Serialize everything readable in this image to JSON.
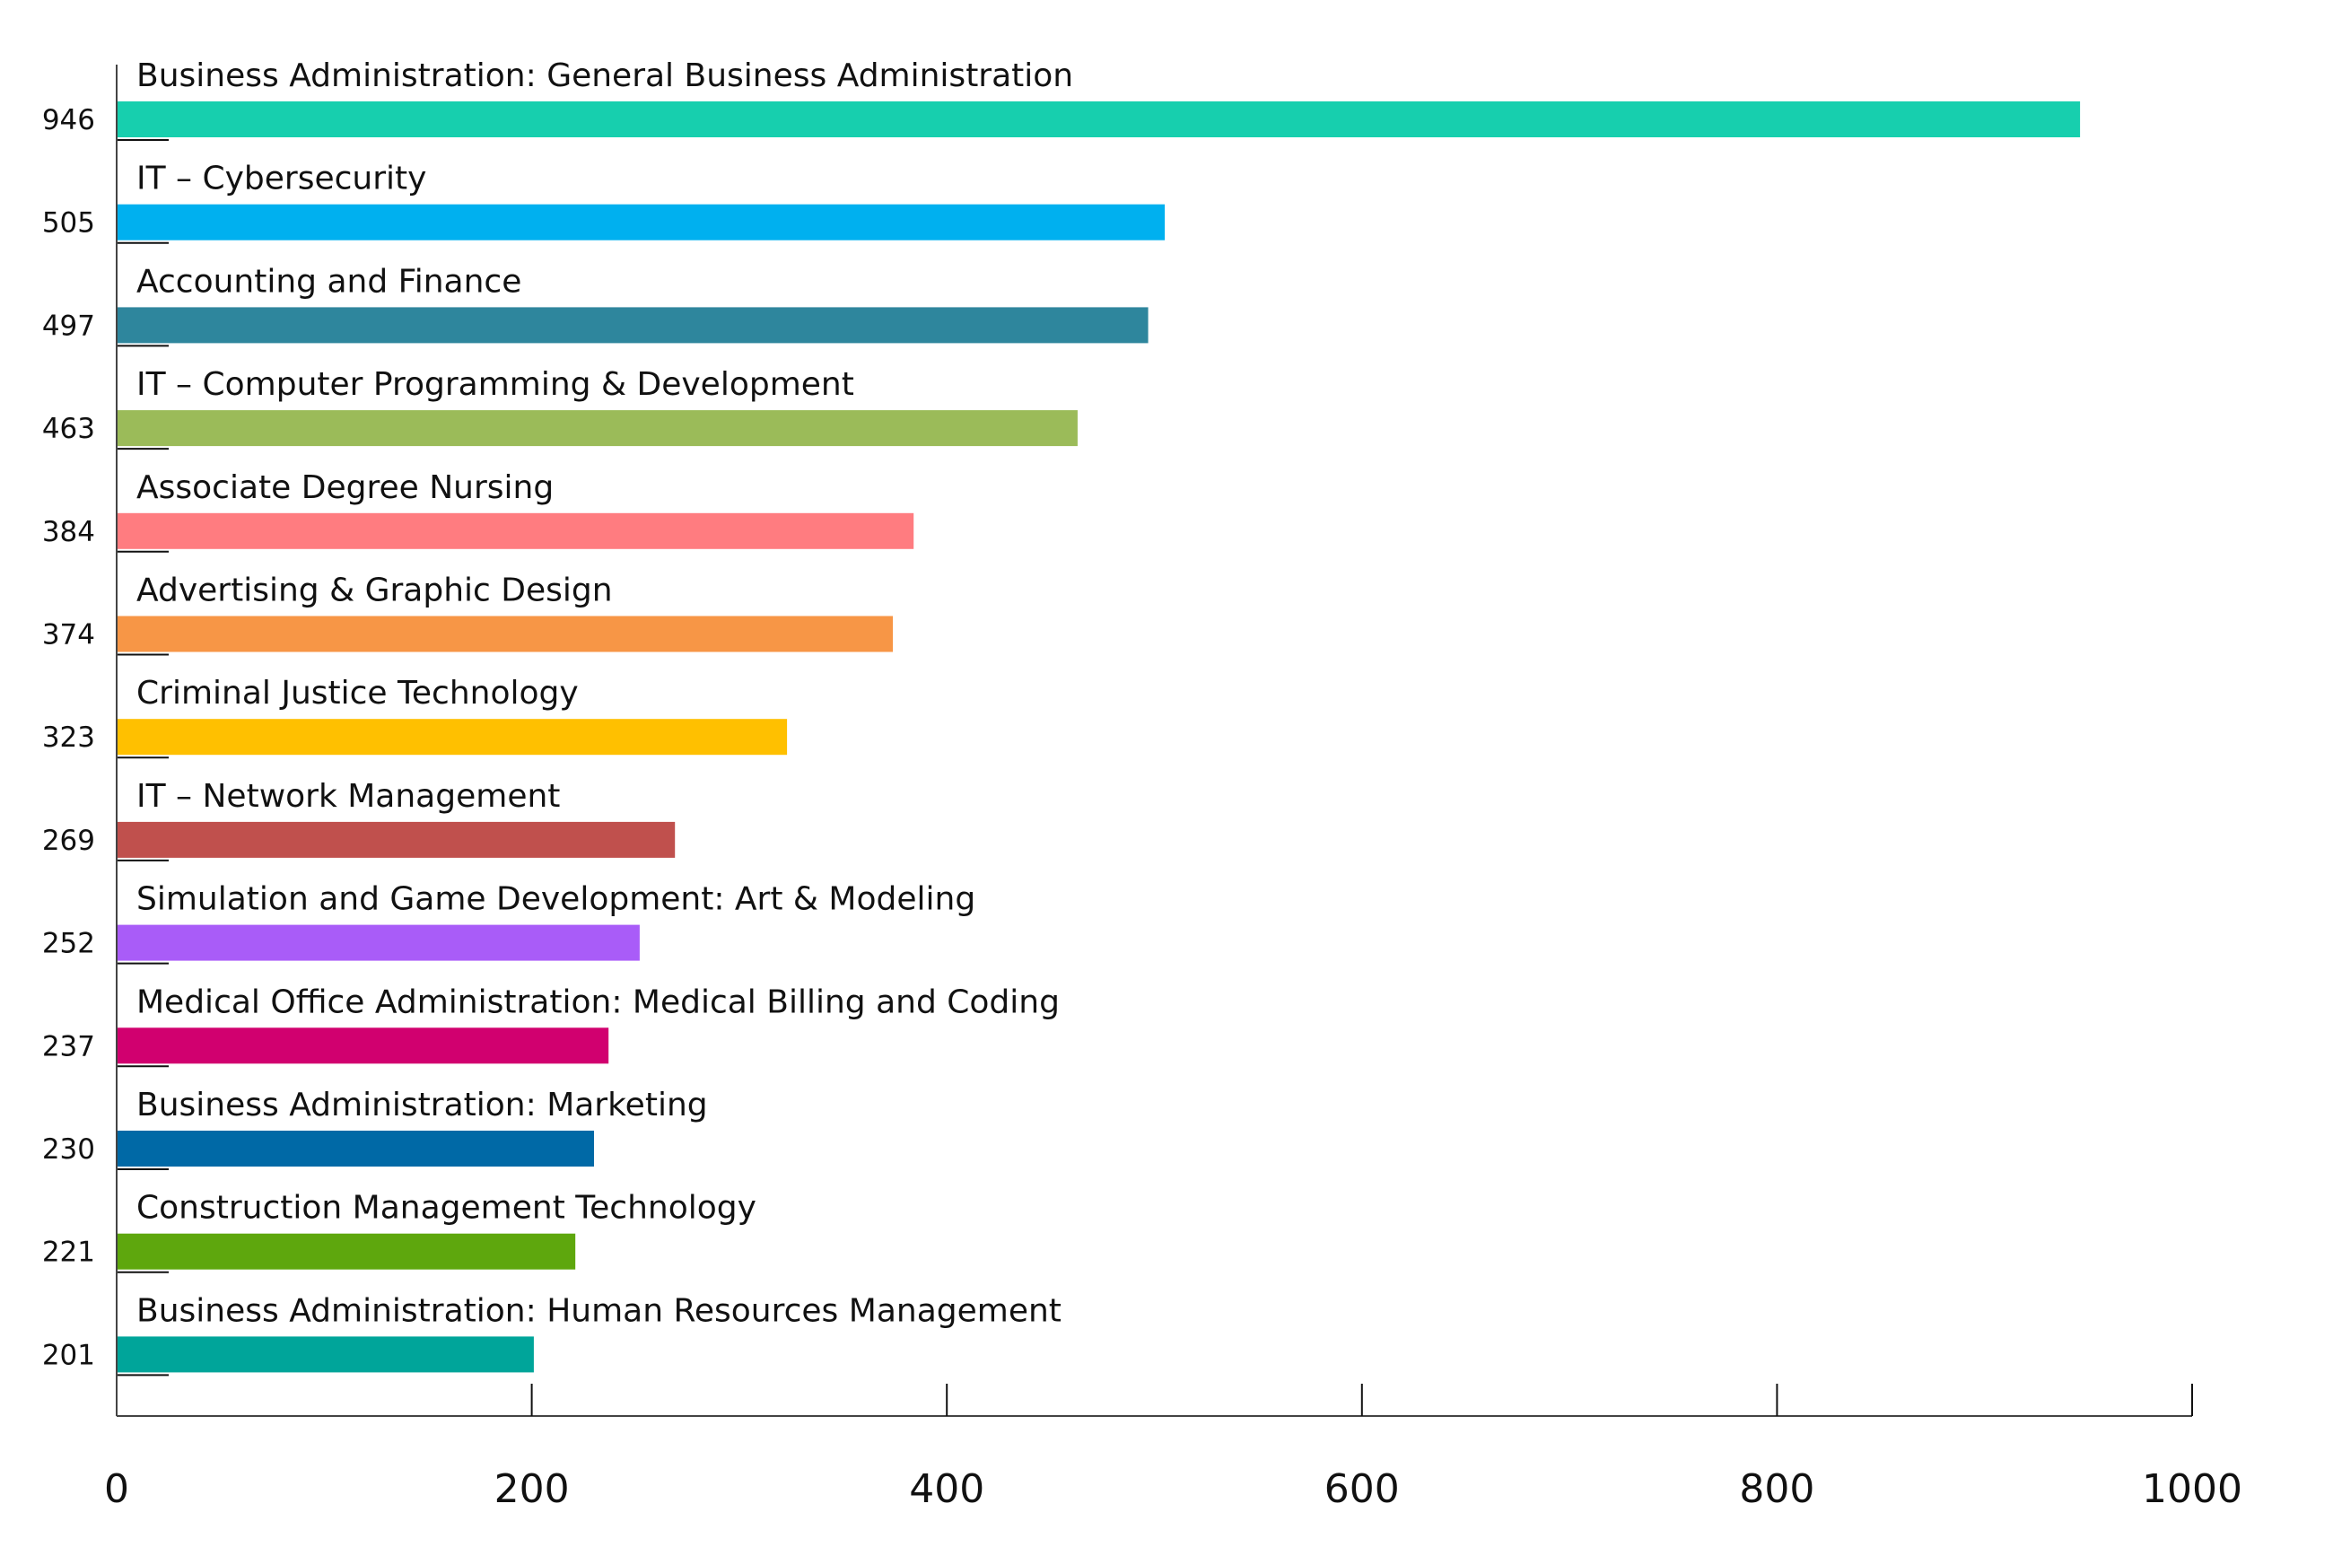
{
  "chart_data": {
    "type": "bar",
    "orientation": "horizontal",
    "title": "",
    "xlabel": "",
    "ylabel": "",
    "xlim": [
      0,
      1000
    ],
    "x_ticks": [
      0,
      200,
      400,
      600,
      800,
      1000
    ],
    "x_tick_labels": [
      "0",
      "200",
      "400",
      "600",
      "800",
      "1000"
    ],
    "grid": false,
    "bars": [
      {
        "label": "Business Administration: General Business Administration",
        "value": 946,
        "value_label": "946",
        "color": "#17cfae"
      },
      {
        "label": "IT – Cybersecurity",
        "value": 505,
        "value_label": "505",
        "color": "#00b0ef"
      },
      {
        "label": "Accounting and Finance",
        "value": 497,
        "value_label": "497",
        "color": "#2e869d"
      },
      {
        "label": "IT – Computer Programming & Development",
        "value": 463,
        "value_label": "463",
        "color": "#9bbb59"
      },
      {
        "label": "Associate Degree Nursing",
        "value": 384,
        "value_label": "384",
        "color": "#ff7c80"
      },
      {
        "label": "Advertising & Graphic Design",
        "value": 374,
        "value_label": "374",
        "color": "#f79646"
      },
      {
        "label": "Criminal Justice Technology",
        "value": 323,
        "value_label": "323",
        "color": "#ffc000"
      },
      {
        "label": "IT – Network Management",
        "value": 269,
        "value_label": "269",
        "color": "#c0504d"
      },
      {
        "label": "Simulation and Game Development: Art & Modeling",
        "value": 252,
        "value_label": "252",
        "color": "#a95cf8"
      },
      {
        "label": "Medical Office Administration: Medical Billing and Coding",
        "value": 237,
        "value_label": "237",
        "color": "#d1006f"
      },
      {
        "label": "Business Administration: Marketing",
        "value": 230,
        "value_label": "230",
        "color": "#0069a6"
      },
      {
        "label": "Construction Management Technology",
        "value": 221,
        "value_label": "221",
        "color": "#5ea70d"
      },
      {
        "label": "Business Administration: Human Resources Management",
        "value": 201,
        "value_label": "201",
        "color": "#00a59a"
      }
    ]
  }
}
